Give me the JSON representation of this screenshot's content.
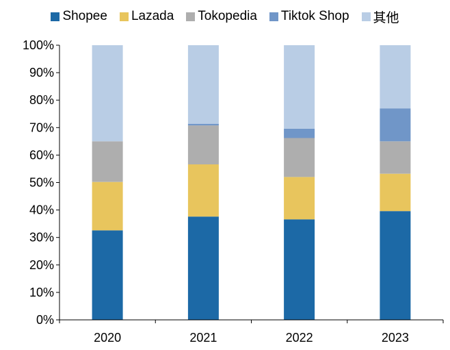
{
  "chart_data": {
    "type": "bar",
    "stacked": true,
    "categories": [
      "2020",
      "2021",
      "2022",
      "2023"
    ],
    "series": [
      {
        "name": "Shopee",
        "color": "#1c69a6",
        "values": [
          32.6,
          37.6,
          36.6,
          39.6
        ]
      },
      {
        "name": "Lazada",
        "color": "#e8c55d",
        "values": [
          17.6,
          19.0,
          15.4,
          13.6
        ]
      },
      {
        "name": "Tokopedia",
        "color": "#aeaeae",
        "values": [
          14.8,
          14.2,
          14.2,
          11.8
        ]
      },
      {
        "name": "Tiktok Shop",
        "color": "#7096c8",
        "values": [
          0.0,
          0.6,
          3.4,
          12.0
        ]
      },
      {
        "name": "其他",
        "color": "#b9cde5",
        "values": [
          35.0,
          28.6,
          30.4,
          23.0
        ]
      }
    ],
    "y_ticks": [
      "0%",
      "10%",
      "20%",
      "30%",
      "40%",
      "50%",
      "60%",
      "70%",
      "80%",
      "90%",
      "100%"
    ],
    "ylim": [
      0,
      100
    ],
    "grid": false,
    "legend_position": "top"
  }
}
